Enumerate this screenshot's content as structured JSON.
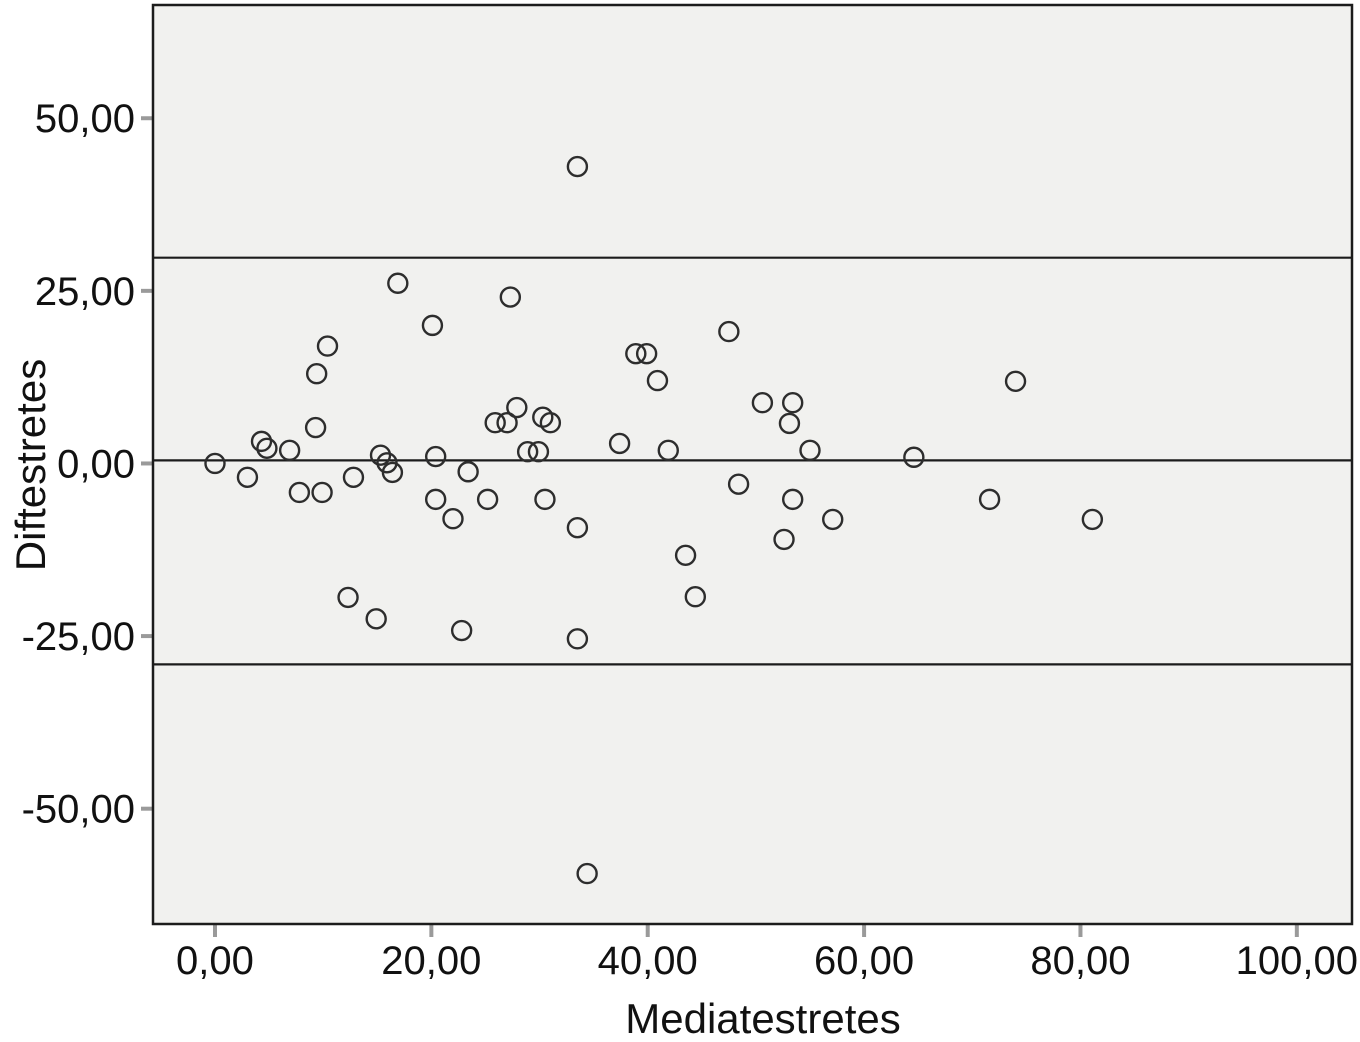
{
  "figure": {
    "x_axis_title": "Mediatestretes",
    "y_axis_title": "Diftestretes"
  },
  "chart_data": {
    "type": "scatter",
    "title": "",
    "xlabel": "Mediatestretes",
    "ylabel": "Diftestretes",
    "marker": "open-circle",
    "grid": false,
    "legend": null,
    "xlim": [
      -5.73,
      105.1
    ],
    "ylim": [
      -66.7,
      66.4
    ],
    "x_ticks": [
      {
        "value": 0,
        "label": "0,00"
      },
      {
        "value": 20,
        "label": "20,00"
      },
      {
        "value": 40,
        "label": "40,00"
      },
      {
        "value": 60,
        "label": "60,00"
      },
      {
        "value": 80,
        "label": "80,00"
      },
      {
        "value": 100,
        "label": "100,00"
      }
    ],
    "y_ticks": [
      {
        "value": 50,
        "label": "50,00"
      },
      {
        "value": 25,
        "label": "25,00"
      },
      {
        "value": 0,
        "label": "0,00"
      },
      {
        "value": -25,
        "label": "-25,00"
      },
      {
        "value": -50,
        "label": "-50,00"
      }
    ],
    "reference_lines": [
      {
        "name": "upper-agreement-limit",
        "value": 29.8
      },
      {
        "name": "mean-difference",
        "value": 0.45
      },
      {
        "name": "lower-agreement-limit",
        "value": -29.1
      }
    ],
    "points": [
      [
        0.0,
        0.0
      ],
      [
        3.0,
        -2.0
      ],
      [
        4.3,
        3.2
      ],
      [
        4.8,
        2.2
      ],
      [
        6.9,
        1.9
      ],
      [
        7.8,
        -4.2
      ],
      [
        9.3,
        5.2
      ],
      [
        9.4,
        13.0
      ],
      [
        9.9,
        -4.2
      ],
      [
        10.4,
        17.0
      ],
      [
        12.3,
        -19.4
      ],
      [
        12.8,
        -2.0
      ],
      [
        14.9,
        -22.5
      ],
      [
        15.3,
        1.2
      ],
      [
        15.9,
        0.1
      ],
      [
        16.4,
        -1.3
      ],
      [
        16.9,
        26.1
      ],
      [
        20.1,
        20.0
      ],
      [
        20.4,
        1.0
      ],
      [
        20.4,
        -5.2
      ],
      [
        22.0,
        -8.0
      ],
      [
        22.8,
        -24.2
      ],
      [
        23.4,
        -1.2
      ],
      [
        25.2,
        -5.2
      ],
      [
        25.9,
        5.9
      ],
      [
        27.0,
        5.9
      ],
      [
        27.3,
        24.1
      ],
      [
        27.9,
        8.1
      ],
      [
        28.9,
        1.7
      ],
      [
        29.9,
        1.7
      ],
      [
        30.3,
        6.7
      ],
      [
        30.5,
        -5.2
      ],
      [
        31.0,
        5.9
      ],
      [
        33.5,
        43.0
      ],
      [
        33.5,
        -9.3
      ],
      [
        33.5,
        -25.4
      ],
      [
        34.4,
        -59.4
      ],
      [
        37.4,
        2.9
      ],
      [
        38.9,
        15.9
      ],
      [
        39.9,
        15.9
      ],
      [
        40.9,
        12.0
      ],
      [
        41.9,
        1.9
      ],
      [
        43.5,
        -13.3
      ],
      [
        44.4,
        -19.3
      ],
      [
        47.5,
        19.1
      ],
      [
        48.4,
        -3.0
      ],
      [
        50.6,
        8.8
      ],
      [
        52.6,
        -11.0
      ],
      [
        53.1,
        5.8
      ],
      [
        53.4,
        8.8
      ],
      [
        53.4,
        -5.2
      ],
      [
        55.0,
        1.9
      ],
      [
        57.1,
        -8.1
      ],
      [
        64.6,
        0.9
      ],
      [
        71.6,
        -5.2
      ],
      [
        74.0,
        11.9
      ],
      [
        81.1,
        -8.1
      ]
    ],
    "colors": {
      "plot_background": "#f1f1ef",
      "outer_background": "#ffffff",
      "axis_border": "#1c1c1c",
      "reference_line": "#1c1c1c",
      "marker_stroke": "#2d2d2d",
      "tick_mark": "#9a9a9a",
      "text": "#111111"
    }
  }
}
